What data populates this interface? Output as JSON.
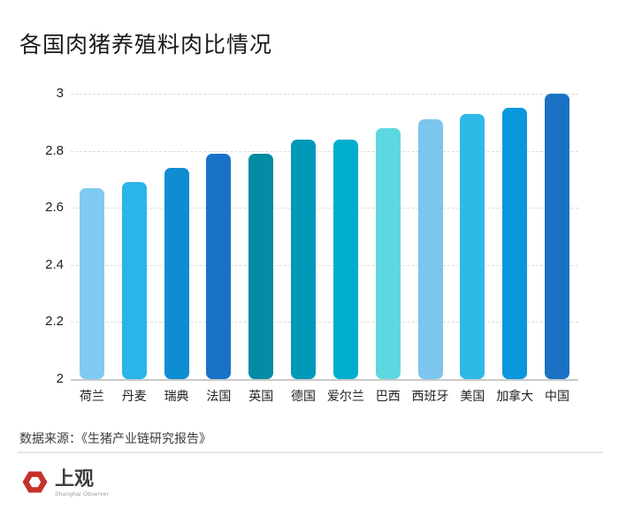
{
  "title": "各国肉猪养殖料肉比情况",
  "chart_data": {
    "type": "bar",
    "title": "各国肉猪养殖料肉比情况",
    "categories": [
      "荷兰",
      "丹麦",
      "瑞典",
      "法国",
      "英国",
      "德国",
      "爱尔兰",
      "巴西",
      "西班牙",
      "美国",
      "加拿大",
      "中国"
    ],
    "values": [
      2.67,
      2.69,
      2.74,
      2.79,
      2.79,
      2.84,
      2.84,
      2.88,
      2.91,
      2.93,
      2.95,
      3.0
    ],
    "bar_colors": [
      "#7ECAF0",
      "#29B5E8",
      "#0E8DD3",
      "#1873C8",
      "#048CA4",
      "#0099B8",
      "#00AECE",
      "#5ED8E0",
      "#7CC5EC",
      "#2FB9E6",
      "#0B97DE",
      "#1B72C4"
    ],
    "xlabel": "",
    "ylabel": "",
    "ylim": [
      2,
      3
    ],
    "yticks": [
      3,
      2.8,
      2.6,
      2.4,
      2.2,
      2
    ],
    "grid": "horizontal-dashed",
    "legend": "none"
  },
  "footer": {
    "source": "数据来源：《生猪产业链研究报告》"
  },
  "logo": {
    "name": "上观",
    "subtitle": "Shanghai Observer",
    "color": "#C4332B"
  }
}
